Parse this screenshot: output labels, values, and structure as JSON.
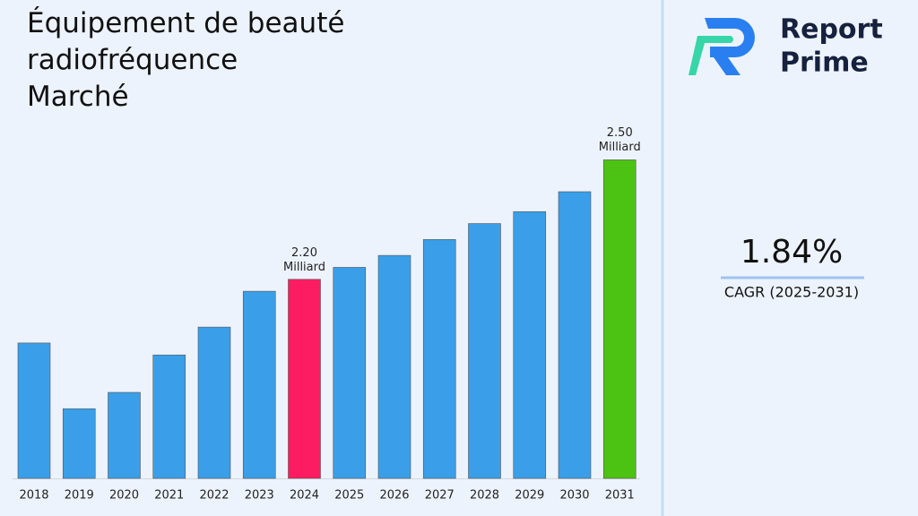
{
  "chart_data": {
    "type": "bar",
    "title": [
      "Équipement de beauté",
      "radiofréquence",
      "Marché"
    ],
    "categories": [
      "2018",
      "2019",
      "2020",
      "2021",
      "2022",
      "2023",
      "2024",
      "2025",
      "2026",
      "2027",
      "2028",
      "2029",
      "2030",
      "2031"
    ],
    "values": [
      2.04,
      1.875,
      1.916,
      2.01,
      2.08,
      2.17,
      2.2,
      2.23,
      2.26,
      2.3,
      2.34,
      2.37,
      2.42,
      2.5
    ],
    "value_labels": [
      null,
      null,
      null,
      null,
      null,
      null,
      "2.20 Milliard",
      null,
      null,
      null,
      null,
      null,
      null,
      "2.50 Milliard"
    ],
    "colors": [
      "#3a9fe8",
      "#3a9fe8",
      "#3a9fe8",
      "#3a9fe8",
      "#3a9fe8",
      "#3a9fe8",
      "#fc1c61",
      "#3a9fe8",
      "#3a9fe8",
      "#3a9fe8",
      "#3a9fe8",
      "#3a9fe8",
      "#3a9fe8",
      "#4cc212"
    ],
    "ylim": [
      1.7,
      2.6
    ]
  },
  "sidebar": {
    "brand": [
      "Report",
      "Prime"
    ],
    "cagr_value": "1.84%",
    "cagr_label": "CAGR (2025-2031)"
  }
}
